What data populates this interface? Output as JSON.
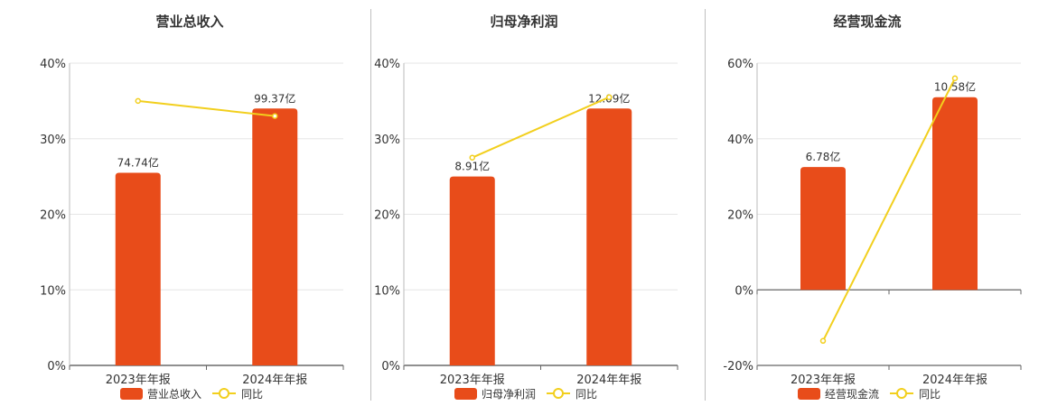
{
  "colors": {
    "bar": "#E84C1A",
    "line": "#F2CF1D",
    "grid": "#e6e6e6",
    "axis": "#666666",
    "text": "#333333"
  },
  "chart_data": [
    {
      "type": "bar",
      "title": "营业总收入",
      "categories": [
        "2023年年报",
        "2024年年报"
      ],
      "ylim": [
        0,
        40
      ],
      "yticks": [
        "0%",
        "10%",
        "20%",
        "30%",
        "40%"
      ],
      "series": [
        {
          "name": "营业总收入",
          "kind": "bar",
          "values": [
            25.5,
            34
          ],
          "labels": [
            "74.74亿",
            "99.37亿"
          ]
        },
        {
          "name": "同比",
          "kind": "line",
          "values": [
            35,
            33
          ]
        }
      ],
      "legend": "bottom"
    },
    {
      "type": "bar",
      "title": "归母净利润",
      "categories": [
        "2023年年报",
        "2024年年报"
      ],
      "ylim": [
        0,
        40
      ],
      "yticks": [
        "0%",
        "10%",
        "20%",
        "30%",
        "40%"
      ],
      "series": [
        {
          "name": "归母净利润",
          "kind": "bar",
          "values": [
            25,
            34
          ],
          "labels": [
            "8.91亿",
            "12.09亿"
          ]
        },
        {
          "name": "同比",
          "kind": "line",
          "values": [
            27.5,
            35.5
          ]
        }
      ],
      "legend": "bottom"
    },
    {
      "type": "bar",
      "title": "经营现金流",
      "categories": [
        "2023年年报",
        "2024年年报"
      ],
      "ylim": [
        -20,
        60
      ],
      "yticks": [
        "-20%",
        "0%",
        "20%",
        "40%",
        "60%"
      ],
      "series": [
        {
          "name": "经营现金流",
          "kind": "bar",
          "values": [
            32.5,
            51
          ],
          "labels": [
            "6.78亿",
            "10.58亿"
          ]
        },
        {
          "name": "同比",
          "kind": "line",
          "values": [
            -13.5,
            56
          ]
        }
      ],
      "legend": "bottom"
    }
  ]
}
